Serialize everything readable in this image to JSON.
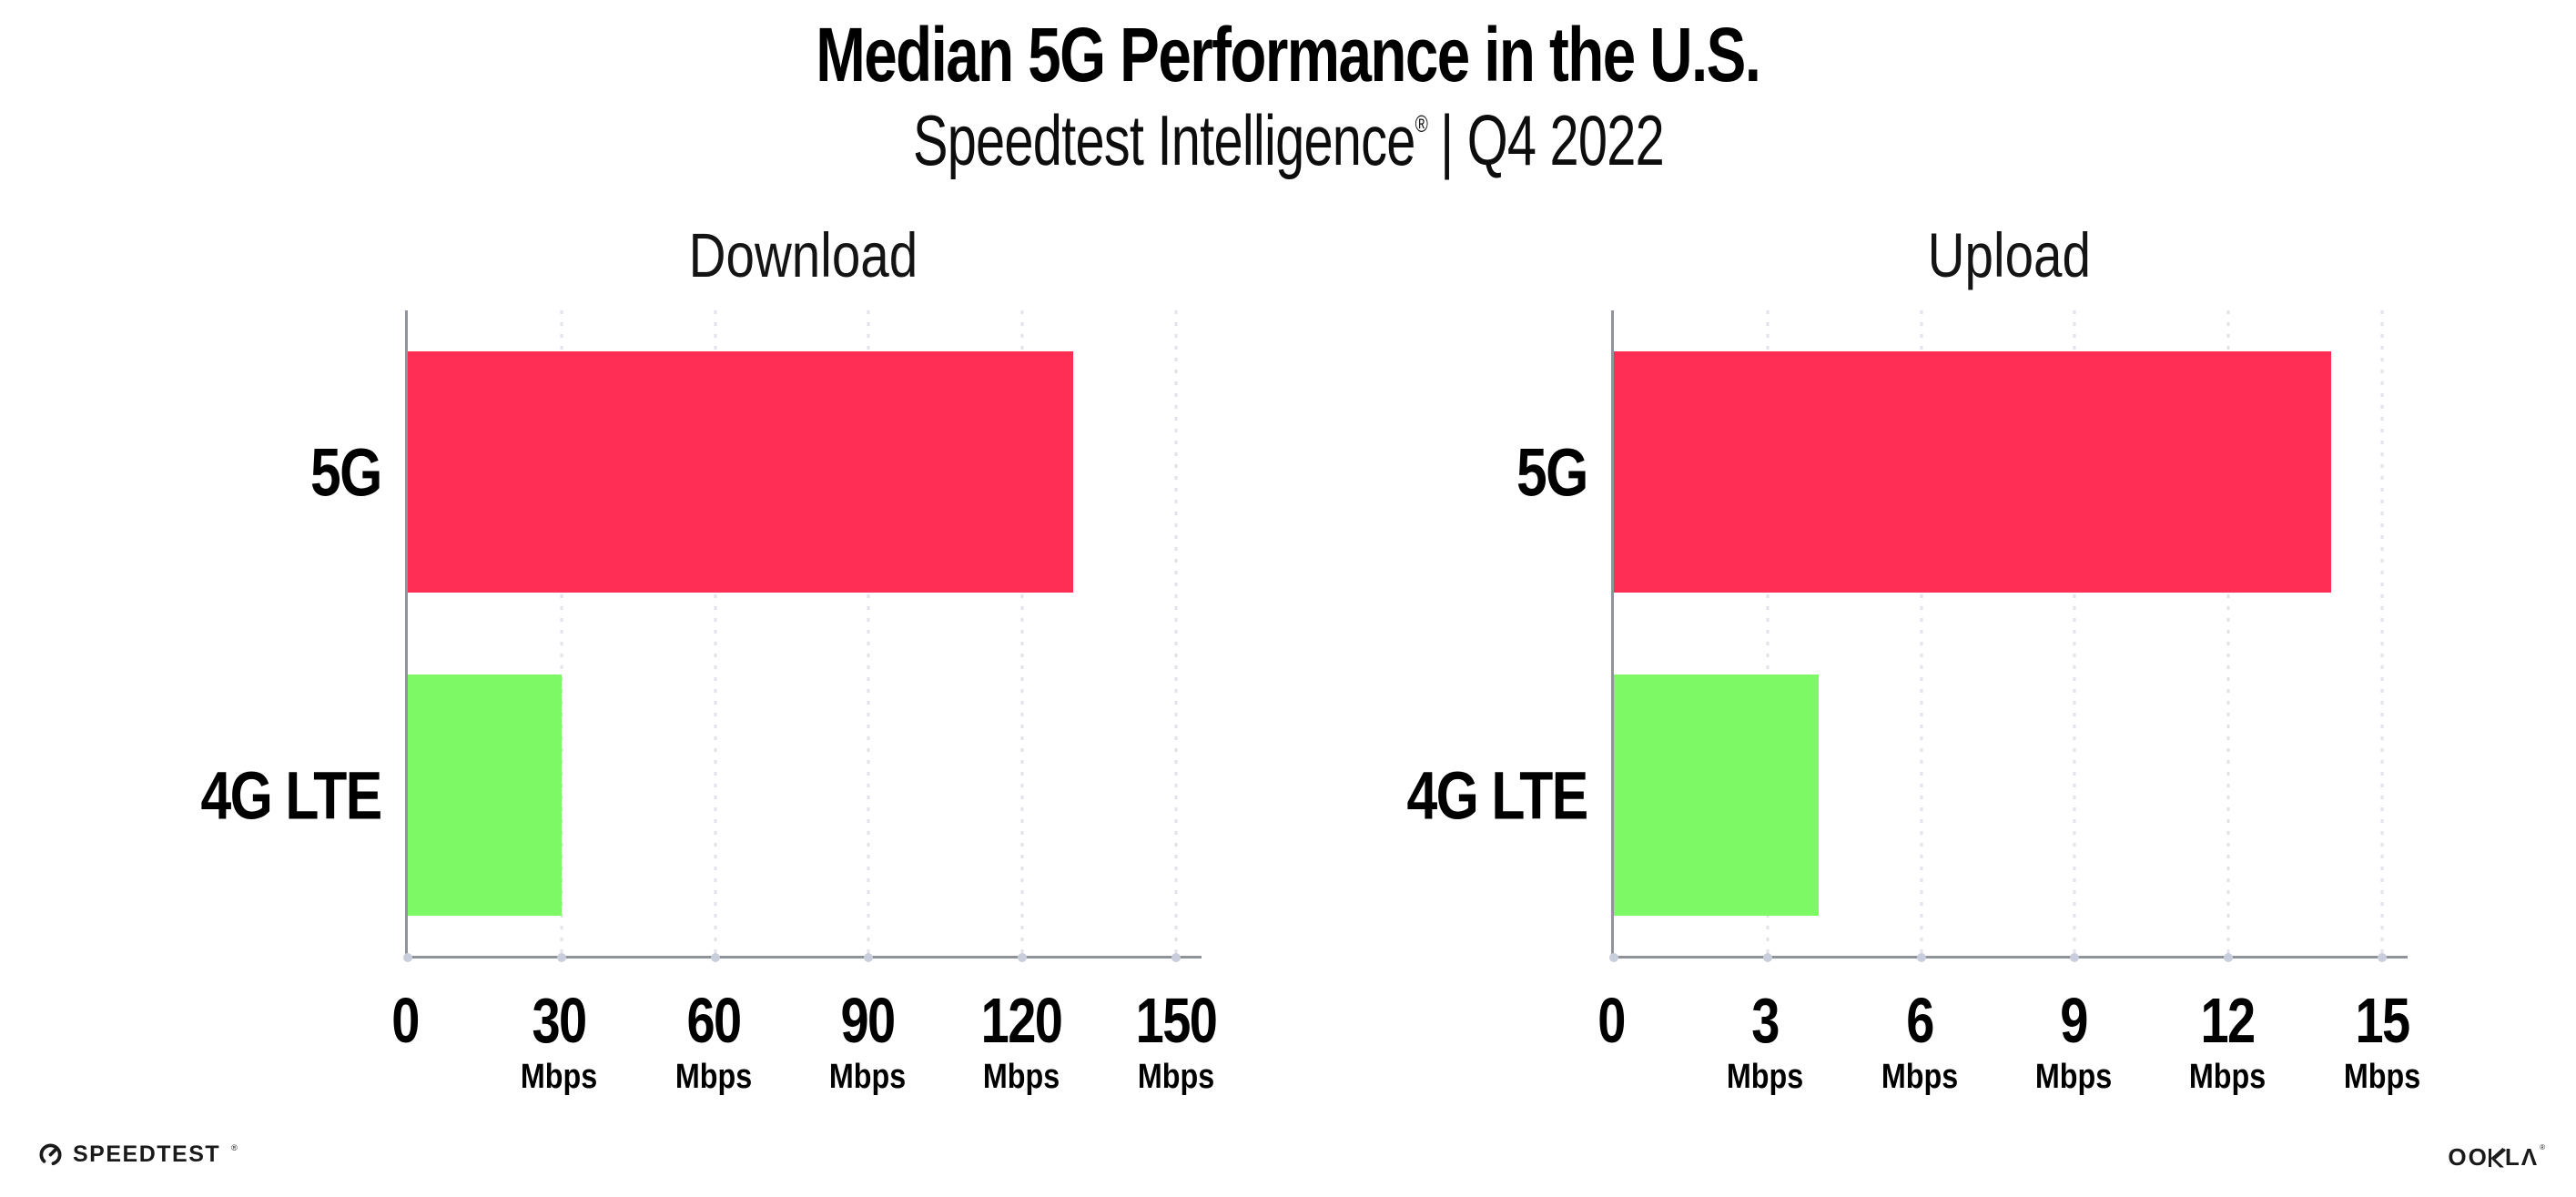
{
  "header": {
    "title": "Median 5G Performance in the U.S.",
    "subtitle_brand": "Speedtest Intelligence",
    "subtitle_registered": "®",
    "subtitle_period": "| Q4 2022"
  },
  "footer": {
    "speedtest_label": "SPEEDTEST",
    "speedtest_registered": "®",
    "speedtest_icon": "gauge-icon",
    "ookla_label_left": "OO",
    "ookla_k_icon": "hatched-k-icon",
    "ookla_label_right": "LΛ",
    "ookla_registered": "®"
  },
  "colors": {
    "bar_5g": "#FF2E54",
    "bar_4g_lte": "#7DF966",
    "axis": "#909399",
    "gridline": "#E1E2EA",
    "tick_dot": "#C9CEDC",
    "text": "#000000"
  },
  "chart_data": [
    {
      "type": "bar",
      "orientation": "horizontal",
      "title": "Download",
      "categories": [
        "5G",
        "4G LTE"
      ],
      "values": [
        130,
        30
      ],
      "unit": "Mbps",
      "xlim": [
        0,
        155
      ],
      "ticks": [
        0,
        30,
        60,
        90,
        120,
        150
      ],
      "grid": "dotted-vertical",
      "legend": "none",
      "bar_colors": [
        "#FF2E54",
        "#7DF966"
      ]
    },
    {
      "type": "bar",
      "orientation": "horizontal",
      "title": "Upload",
      "categories": [
        "5G",
        "4G LTE"
      ],
      "values": [
        14,
        4
      ],
      "unit": "Mbps",
      "xlim": [
        0,
        15.5
      ],
      "ticks": [
        0,
        3,
        6,
        9,
        12,
        15
      ],
      "grid": "dotted-vertical",
      "legend": "none",
      "bar_colors": [
        "#FF2E54",
        "#7DF966"
      ]
    }
  ]
}
